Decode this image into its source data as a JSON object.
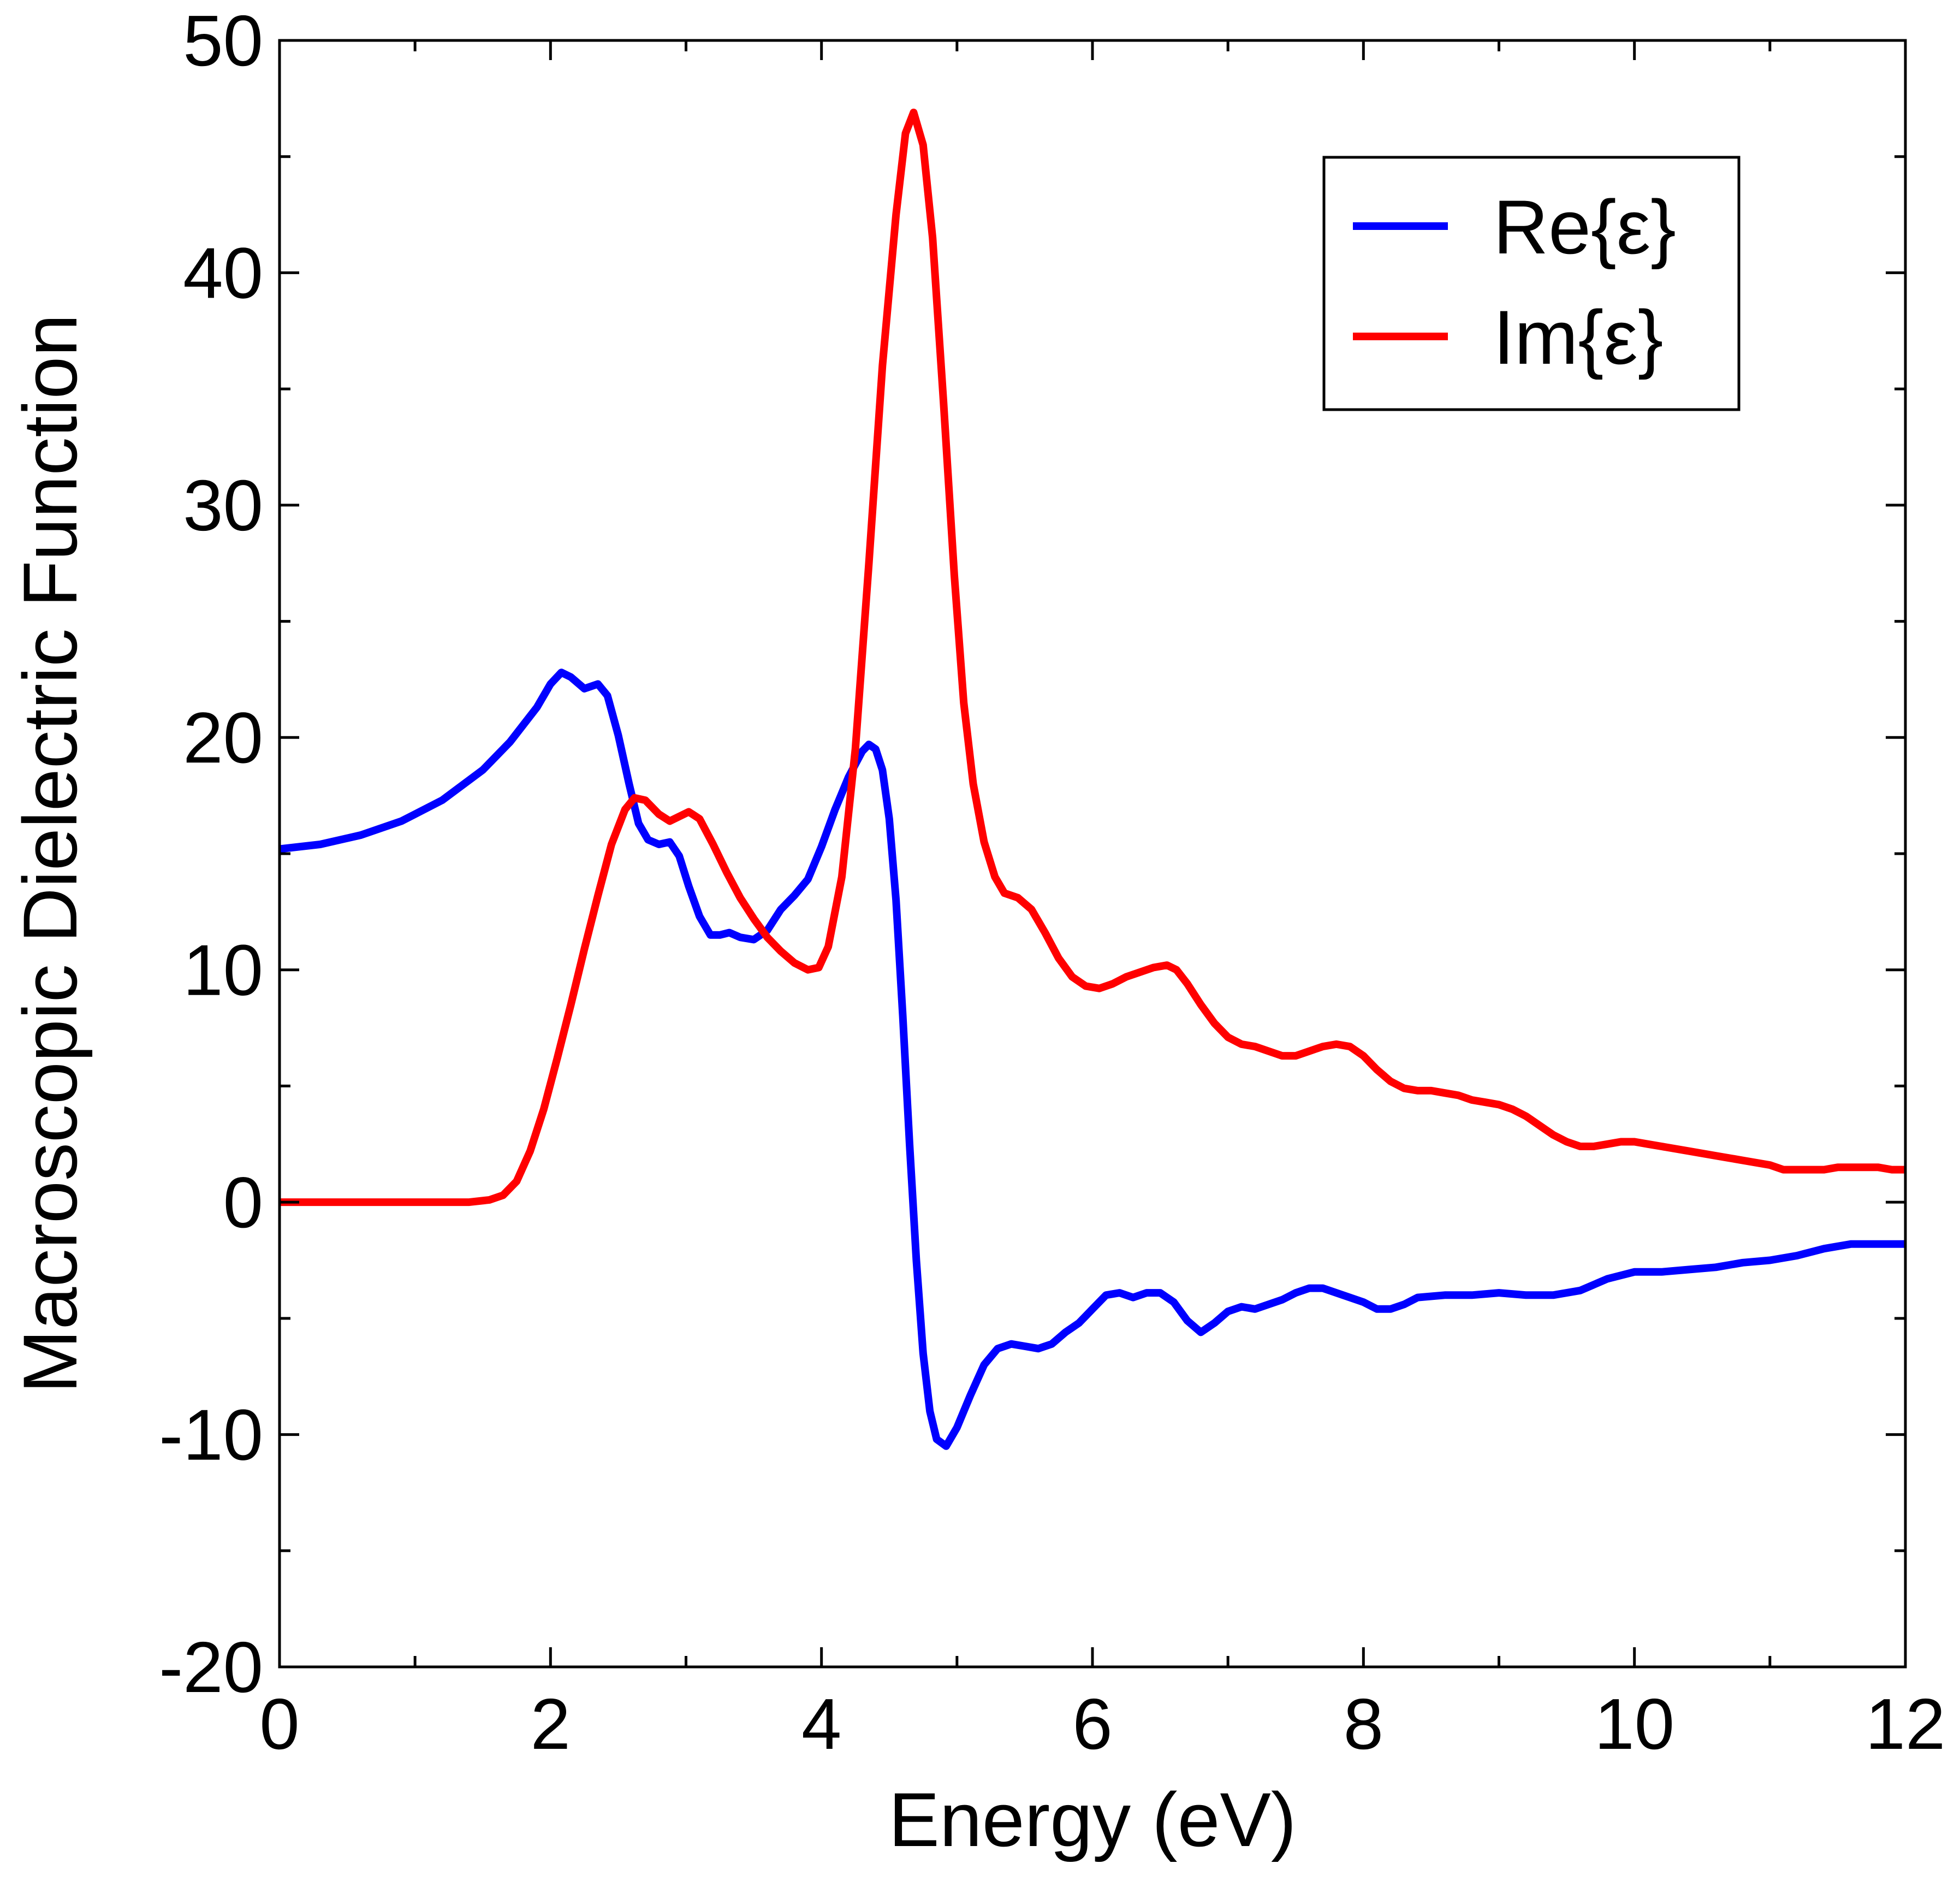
{
  "chart_data": {
    "type": "line",
    "xlabel": "Energy (eV)",
    "ylabel": "Macroscopic Dielectric Function",
    "xlim": [
      0,
      12
    ],
    "ylim": [
      -20,
      50
    ],
    "x_ticks": [
      {
        "value": 0,
        "label": "0"
      },
      {
        "value": 2,
        "label": "2"
      },
      {
        "value": 4,
        "label": "4"
      },
      {
        "value": 6,
        "label": "6"
      },
      {
        "value": 8,
        "label": "8"
      },
      {
        "value": 10,
        "label": "10"
      },
      {
        "value": 12,
        "label": "12"
      }
    ],
    "y_ticks": [
      {
        "value": -20,
        "label": "-20"
      },
      {
        "value": -10,
        "label": "-10"
      },
      {
        "value": 0,
        "label": "0"
      },
      {
        "value": 10,
        "label": "10"
      },
      {
        "value": 20,
        "label": "20"
      },
      {
        "value": 30,
        "label": "30"
      },
      {
        "value": 40,
        "label": "40"
      },
      {
        "value": 50,
        "label": "50"
      }
    ],
    "x_minor_step": 1,
    "y_minor_step": 5,
    "grid": false,
    "legend_position": "top-right",
    "series": [
      {
        "name": "Re{ε}",
        "color": "#0000ff",
        "points": [
          [
            0,
            15.2
          ],
          [
            0.3,
            15.4
          ],
          [
            0.6,
            15.8
          ],
          [
            0.9,
            16.4
          ],
          [
            1.2,
            17.3
          ],
          [
            1.5,
            18.6
          ],
          [
            1.7,
            19.8
          ],
          [
            1.9,
            21.3
          ],
          [
            2.0,
            22.3
          ],
          [
            2.08,
            22.8
          ],
          [
            2.15,
            22.6
          ],
          [
            2.25,
            22.1
          ],
          [
            2.35,
            22.3
          ],
          [
            2.42,
            21.8
          ],
          [
            2.5,
            20.1
          ],
          [
            2.58,
            18.0
          ],
          [
            2.65,
            16.3
          ],
          [
            2.72,
            15.6
          ],
          [
            2.8,
            15.4
          ],
          [
            2.88,
            15.5
          ],
          [
            2.95,
            14.9
          ],
          [
            3.02,
            13.6
          ],
          [
            3.1,
            12.3
          ],
          [
            3.18,
            11.5
          ],
          [
            3.25,
            11.5
          ],
          [
            3.32,
            11.6
          ],
          [
            3.4,
            11.4
          ],
          [
            3.5,
            11.3
          ],
          [
            3.6,
            11.7
          ],
          [
            3.7,
            12.6
          ],
          [
            3.8,
            13.2
          ],
          [
            3.9,
            13.9
          ],
          [
            4.0,
            15.3
          ],
          [
            4.1,
            16.9
          ],
          [
            4.2,
            18.3
          ],
          [
            4.3,
            19.4
          ],
          [
            4.35,
            19.7
          ],
          [
            4.4,
            19.5
          ],
          [
            4.45,
            18.6
          ],
          [
            4.5,
            16.5
          ],
          [
            4.55,
            13.0
          ],
          [
            4.6,
            8.0
          ],
          [
            4.65,
            2.5
          ],
          [
            4.7,
            -2.5
          ],
          [
            4.75,
            -6.5
          ],
          [
            4.8,
            -9.0
          ],
          [
            4.85,
            -10.2
          ],
          [
            4.92,
            -10.5
          ],
          [
            5.0,
            -9.7
          ],
          [
            5.1,
            -8.3
          ],
          [
            5.2,
            -7.0
          ],
          [
            5.3,
            -6.3
          ],
          [
            5.4,
            -6.1
          ],
          [
            5.5,
            -6.2
          ],
          [
            5.6,
            -6.3
          ],
          [
            5.7,
            -6.1
          ],
          [
            5.8,
            -5.6
          ],
          [
            5.9,
            -5.2
          ],
          [
            6.0,
            -4.6
          ],
          [
            6.1,
            -4.0
          ],
          [
            6.2,
            -3.9
          ],
          [
            6.3,
            -4.1
          ],
          [
            6.4,
            -3.9
          ],
          [
            6.5,
            -3.9
          ],
          [
            6.6,
            -4.3
          ],
          [
            6.7,
            -5.1
          ],
          [
            6.8,
            -5.6
          ],
          [
            6.9,
            -5.2
          ],
          [
            7.0,
            -4.7
          ],
          [
            7.1,
            -4.5
          ],
          [
            7.2,
            -4.6
          ],
          [
            7.3,
            -4.4
          ],
          [
            7.4,
            -4.2
          ],
          [
            7.5,
            -3.9
          ],
          [
            7.6,
            -3.7
          ],
          [
            7.7,
            -3.7
          ],
          [
            7.8,
            -3.9
          ],
          [
            8.0,
            -4.3
          ],
          [
            8.1,
            -4.6
          ],
          [
            8.2,
            -4.6
          ],
          [
            8.3,
            -4.4
          ],
          [
            8.4,
            -4.1
          ],
          [
            8.6,
            -4.0
          ],
          [
            8.8,
            -4.0
          ],
          [
            9.0,
            -3.9
          ],
          [
            9.2,
            -4.0
          ],
          [
            9.4,
            -4.0
          ],
          [
            9.6,
            -3.8
          ],
          [
            9.8,
            -3.3
          ],
          [
            10.0,
            -3.0
          ],
          [
            10.2,
            -3.0
          ],
          [
            10.4,
            -2.9
          ],
          [
            10.6,
            -2.8
          ],
          [
            10.8,
            -2.6
          ],
          [
            11.0,
            -2.5
          ],
          [
            11.2,
            -2.3
          ],
          [
            11.4,
            -2.0
          ],
          [
            11.6,
            -1.8
          ],
          [
            11.8,
            -1.8
          ],
          [
            12.0,
            -1.8
          ]
        ]
      },
      {
        "name": "Im{ε}",
        "color": "#ff0000",
        "points": [
          [
            0,
            0.0
          ],
          [
            0.5,
            0.0
          ],
          [
            1.0,
            0.0
          ],
          [
            1.4,
            0.0
          ],
          [
            1.55,
            0.1
          ],
          [
            1.65,
            0.3
          ],
          [
            1.75,
            0.9
          ],
          [
            1.85,
            2.2
          ],
          [
            1.95,
            4.0
          ],
          [
            2.05,
            6.2
          ],
          [
            2.15,
            8.5
          ],
          [
            2.25,
            10.9
          ],
          [
            2.35,
            13.2
          ],
          [
            2.45,
            15.4
          ],
          [
            2.55,
            16.9
          ],
          [
            2.62,
            17.4
          ],
          [
            2.7,
            17.3
          ],
          [
            2.8,
            16.7
          ],
          [
            2.88,
            16.4
          ],
          [
            2.95,
            16.6
          ],
          [
            3.02,
            16.8
          ],
          [
            3.1,
            16.5
          ],
          [
            3.2,
            15.4
          ],
          [
            3.3,
            14.2
          ],
          [
            3.4,
            13.1
          ],
          [
            3.5,
            12.2
          ],
          [
            3.6,
            11.4
          ],
          [
            3.7,
            10.8
          ],
          [
            3.8,
            10.3
          ],
          [
            3.9,
            10.0
          ],
          [
            3.98,
            10.1
          ],
          [
            4.05,
            11.0
          ],
          [
            4.15,
            14.0
          ],
          [
            4.25,
            19.5
          ],
          [
            4.35,
            27.5
          ],
          [
            4.45,
            36.0
          ],
          [
            4.55,
            42.5
          ],
          [
            4.62,
            46.0
          ],
          [
            4.68,
            46.9
          ],
          [
            4.75,
            45.5
          ],
          [
            4.82,
            41.5
          ],
          [
            4.9,
            34.5
          ],
          [
            4.98,
            27.0
          ],
          [
            5.05,
            21.5
          ],
          [
            5.12,
            18.0
          ],
          [
            5.2,
            15.5
          ],
          [
            5.28,
            14.0
          ],
          [
            5.35,
            13.3
          ],
          [
            5.45,
            13.1
          ],
          [
            5.55,
            12.6
          ],
          [
            5.65,
            11.6
          ],
          [
            5.75,
            10.5
          ],
          [
            5.85,
            9.7
          ],
          [
            5.95,
            9.3
          ],
          [
            6.05,
            9.2
          ],
          [
            6.15,
            9.4
          ],
          [
            6.25,
            9.7
          ],
          [
            6.35,
            9.9
          ],
          [
            6.45,
            10.1
          ],
          [
            6.55,
            10.2
          ],
          [
            6.62,
            10.0
          ],
          [
            6.7,
            9.4
          ],
          [
            6.8,
            8.5
          ],
          [
            6.9,
            7.7
          ],
          [
            7.0,
            7.1
          ],
          [
            7.1,
            6.8
          ],
          [
            7.2,
            6.7
          ],
          [
            7.3,
            6.5
          ],
          [
            7.4,
            6.3
          ],
          [
            7.5,
            6.3
          ],
          [
            7.6,
            6.5
          ],
          [
            7.7,
            6.7
          ],
          [
            7.8,
            6.8
          ],
          [
            7.9,
            6.7
          ],
          [
            8.0,
            6.3
          ],
          [
            8.1,
            5.7
          ],
          [
            8.2,
            5.2
          ],
          [
            8.3,
            4.9
          ],
          [
            8.4,
            4.8
          ],
          [
            8.5,
            4.8
          ],
          [
            8.6,
            4.7
          ],
          [
            8.7,
            4.6
          ],
          [
            8.8,
            4.4
          ],
          [
            8.9,
            4.3
          ],
          [
            9.0,
            4.2
          ],
          [
            9.1,
            4.0
          ],
          [
            9.2,
            3.7
          ],
          [
            9.3,
            3.3
          ],
          [
            9.4,
            2.9
          ],
          [
            9.5,
            2.6
          ],
          [
            9.6,
            2.4
          ],
          [
            9.7,
            2.4
          ],
          [
            9.8,
            2.5
          ],
          [
            9.9,
            2.6
          ],
          [
            10.0,
            2.6
          ],
          [
            10.1,
            2.5
          ],
          [
            10.2,
            2.4
          ],
          [
            10.4,
            2.2
          ],
          [
            10.6,
            2.0
          ],
          [
            10.8,
            1.8
          ],
          [
            11.0,
            1.6
          ],
          [
            11.1,
            1.4
          ],
          [
            11.2,
            1.4
          ],
          [
            11.3,
            1.4
          ],
          [
            11.4,
            1.4
          ],
          [
            11.5,
            1.5
          ],
          [
            11.6,
            1.5
          ],
          [
            11.7,
            1.5
          ],
          [
            11.8,
            1.5
          ],
          [
            11.9,
            1.4
          ],
          [
            12.0,
            1.4
          ]
        ]
      }
    ]
  }
}
